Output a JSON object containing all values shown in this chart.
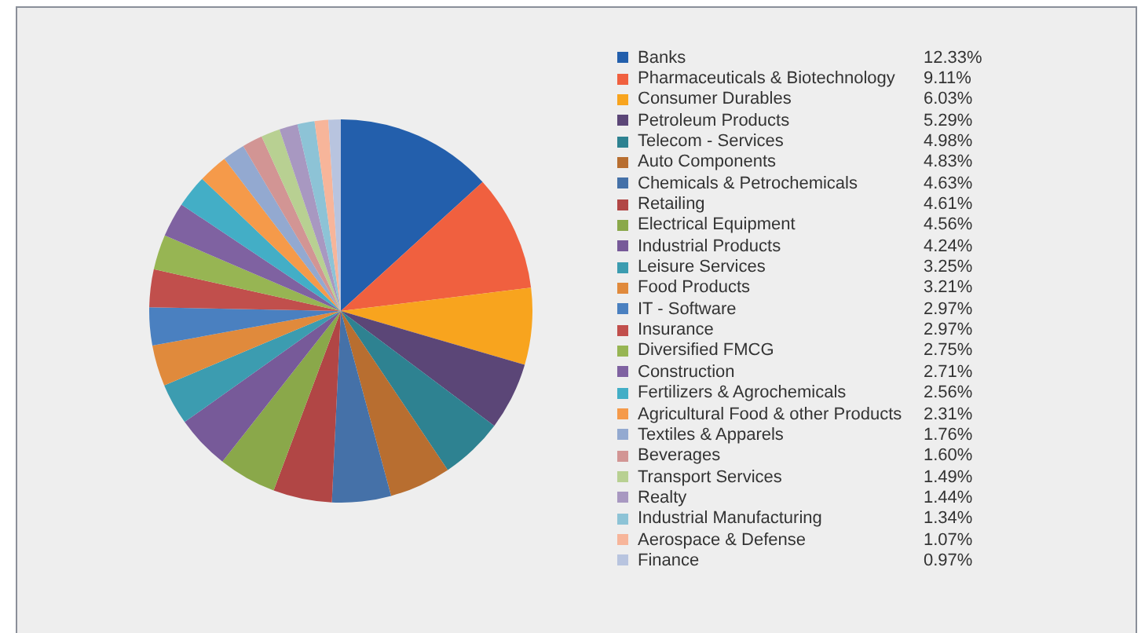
{
  "chart_data": {
    "type": "pie",
    "legend": "right",
    "categories": [
      "Banks",
      "Pharmaceuticals & Biotechnology",
      "Consumer Durables",
      "Petroleum Products",
      "Telecom - Services",
      "Auto Components",
      "Chemicals & Petrochemicals",
      "Retailing",
      "Electrical Equipment",
      "Industrial Products",
      "Leisure Services",
      "Food Products",
      "IT - Software",
      "Insurance",
      "Diversified FMCG",
      "Construction",
      "Fertilizers & Agrochemicals",
      "Agricultural Food & other Products",
      "Textiles & Apparels",
      "Beverages",
      "Transport Services",
      "Realty",
      "Industrial Manufacturing",
      "Aerospace & Defense",
      "Finance"
    ],
    "values": [
      12.33,
      9.11,
      6.03,
      5.29,
      4.98,
      4.83,
      4.63,
      4.61,
      4.56,
      4.24,
      3.25,
      3.21,
      2.97,
      2.97,
      2.75,
      2.71,
      2.56,
      2.31,
      1.76,
      1.6,
      1.49,
      1.44,
      1.34,
      1.07,
      0.97
    ],
    "value_labels": [
      "12.33%",
      "9.11%",
      "6.03%",
      "5.29%",
      "4.98%",
      "4.83%",
      "4.63%",
      "4.61%",
      "4.56%",
      "4.24%",
      "3.25%",
      "3.21%",
      "2.97%",
      "2.97%",
      "2.75%",
      "2.71%",
      "2.56%",
      "2.31%",
      "1.76%",
      "1.60%",
      "1.49%",
      "1.44%",
      "1.34%",
      "1.07%",
      "0.97%"
    ],
    "colors": [
      "#235fac",
      "#f0603f",
      "#f8a41e",
      "#5b4677",
      "#2e8291",
      "#b86e30",
      "#4571a8",
      "#b14645",
      "#8aa84a",
      "#775a99",
      "#3c9cb0",
      "#e08a3c",
      "#4a80c0",
      "#c14f4c",
      "#97b553",
      "#7f62a1",
      "#43aec6",
      "#f59a4a",
      "#93a9d0",
      "#d29594",
      "#b8d092",
      "#a898c1",
      "#8dc3d6",
      "#f7b59a",
      "#b8c4df"
    ]
  }
}
